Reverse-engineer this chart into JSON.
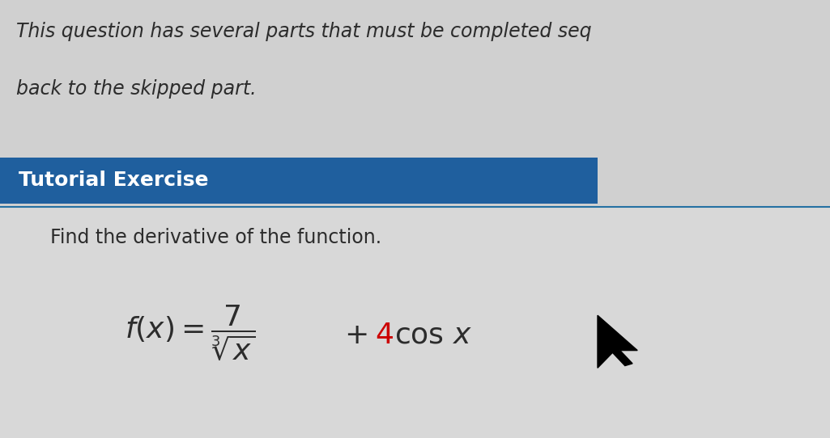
{
  "bg_color": "#d0d0d0",
  "top_text_line1": "This question has several parts that must be completed seq",
  "top_text_line2": "back to the skipped part.",
  "banner_color": "#1f5f9e",
  "banner_text": "Tutorial Exercise",
  "banner_text_color": "#ffffff",
  "lower_bg_color": "#d8d8d8",
  "instruction_text": "Find the derivative of the function.",
  "text_color": "#2c2c2c",
  "red_color": "#cc0000",
  "title_fontsize": 17,
  "banner_fontsize": 18,
  "instruction_fontsize": 17,
  "formula_fontsize": 26,
  "line_color": "#2471a3"
}
